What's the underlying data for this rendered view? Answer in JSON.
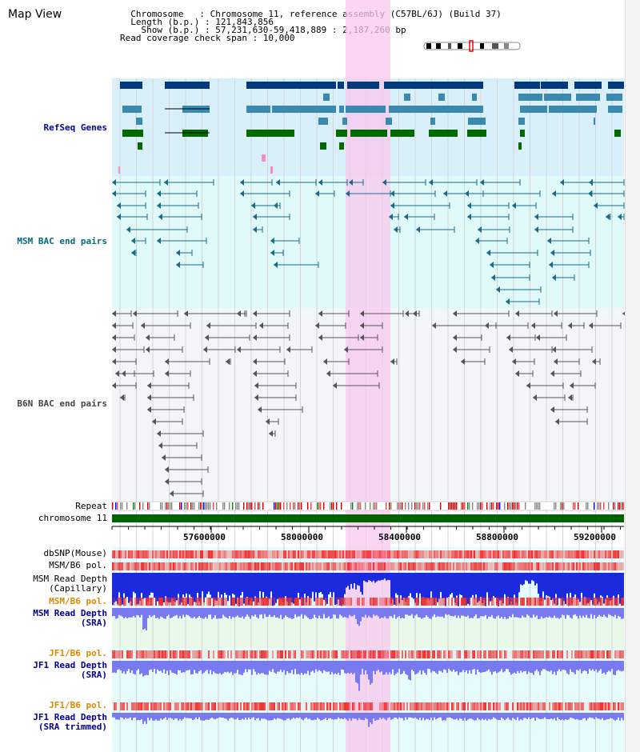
{
  "map_title": "Map View",
  "info": {
    "chromosome_line": "  Chromosome   : Chromosome 11, reference assembly (C57BL/6J) (Build 37)",
    "length_line": "  Length (b.p.) : 121,843,856",
    "show_line": "    Show (b.p.) : 57,231,630-59,418,889 : 2,187,260 bp",
    "coverage_line": "Read coverage check span : 10,000"
  },
  "tracks": {
    "refseq": "RefSeq Genes",
    "msm_bac": "MSM BAC end pairs",
    "b6n_bac": "B6N BAC end pairs",
    "repeat": "Repeat",
    "chromosome": "chromosome 11",
    "dbsnp": "dbSNP(Mouse)",
    "msm_b6_pol": "MSM/B6 pol.",
    "msm_read_depth_cap_1": "MSM Read Depth",
    "msm_read_depth_cap_2": "(Capillary)",
    "msm_b6_pol_2": "MSM/B6 pol.",
    "msm_read_depth_sra_1": "MSM Read Depth",
    "msm_read_depth_sra_2": "(SRA)",
    "jf1_b6_pol": "JF1/B6 pol.",
    "jf1_read_depth_1": "JF1 Read Depth",
    "jf1_read_depth_2": "(SRA)",
    "jf1_b6_pol_2": "JF1/B6 pol.",
    "jf1_trim_1": "JF1 Read Depth",
    "jf1_trim_2": "(SRA trimmed)"
  },
  "axis_ticks": [
    "57600000",
    "58000000",
    "58400000",
    "58800000",
    "59200000"
  ],
  "colors": {
    "refseq_bg": "#d9f0fb",
    "msm_bg": "#e0fafa",
    "b6n_bg": "#f2f6f8",
    "highlight": "#f8c8ee",
    "chromosome_bar": "#006400",
    "gene_dark": "#003a7a",
    "gene_mid": "#3a8ab0",
    "gene_green": "#006a00",
    "msm_pair": "#1a6a8a",
    "b6n_pair": "#555555",
    "snp_red": "#ee3030",
    "depth_blue": "#1a2adc",
    "depth_light": "#7a7af0"
  }
}
